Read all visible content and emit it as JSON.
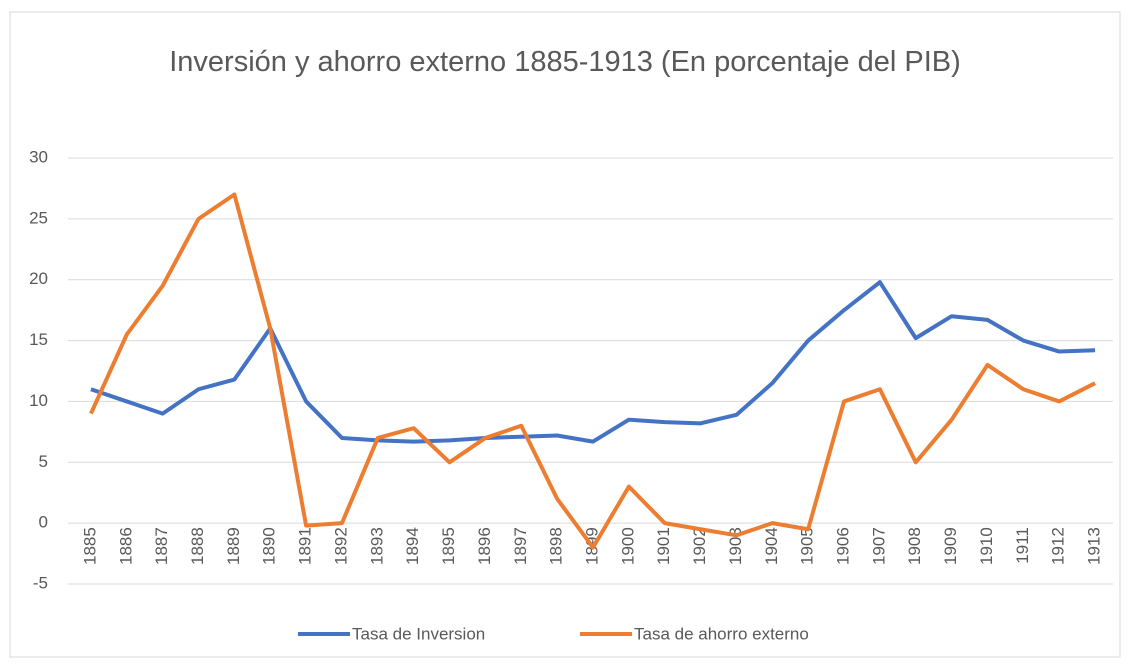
{
  "chart_data": {
    "type": "line",
    "title": "Inversión y ahorro externo 1885-1913 (En porcentaje del PIB)",
    "categories": [
      "1885",
      "1886",
      "1887",
      "1888",
      "1889",
      "1890",
      "1891",
      "1892",
      "1893",
      "1894",
      "1895",
      "1896",
      "1897",
      "1898",
      "1899",
      "1900",
      "1901",
      "1902",
      "1903",
      "1904",
      "1905",
      "1906",
      "1907",
      "1908",
      "1909",
      "1910",
      "1911",
      "1912",
      "1913"
    ],
    "series": [
      {
        "name": "Tasa de Inversion",
        "color": "#4472c4",
        "values": [
          11,
          10,
          9,
          11,
          11.8,
          16,
          10,
          7,
          6.8,
          6.7,
          6.8,
          7,
          7.1,
          7.2,
          6.7,
          8.5,
          8.3,
          8.2,
          8.9,
          11.5,
          15,
          17.5,
          19.8,
          15.2,
          17,
          16.7,
          15,
          14.1,
          14.2
        ]
      },
      {
        "name": "Tasa de ahorro externo",
        "color": "#ed7d31",
        "values": [
          9,
          15.5,
          19.5,
          25,
          27,
          16,
          -0.2,
          0,
          7,
          7.8,
          5,
          7,
          8,
          2,
          -2,
          3,
          0,
          -0.5,
          -1,
          0,
          -0.5,
          10,
          11,
          5,
          8.5,
          13,
          11,
          10,
          11.5
        ]
      }
    ],
    "ylim": [
      -5,
      30
    ],
    "yticks": [
      -5,
      0,
      5,
      10,
      15,
      20,
      25,
      30
    ],
    "grid": true,
    "legend": "bottom"
  }
}
